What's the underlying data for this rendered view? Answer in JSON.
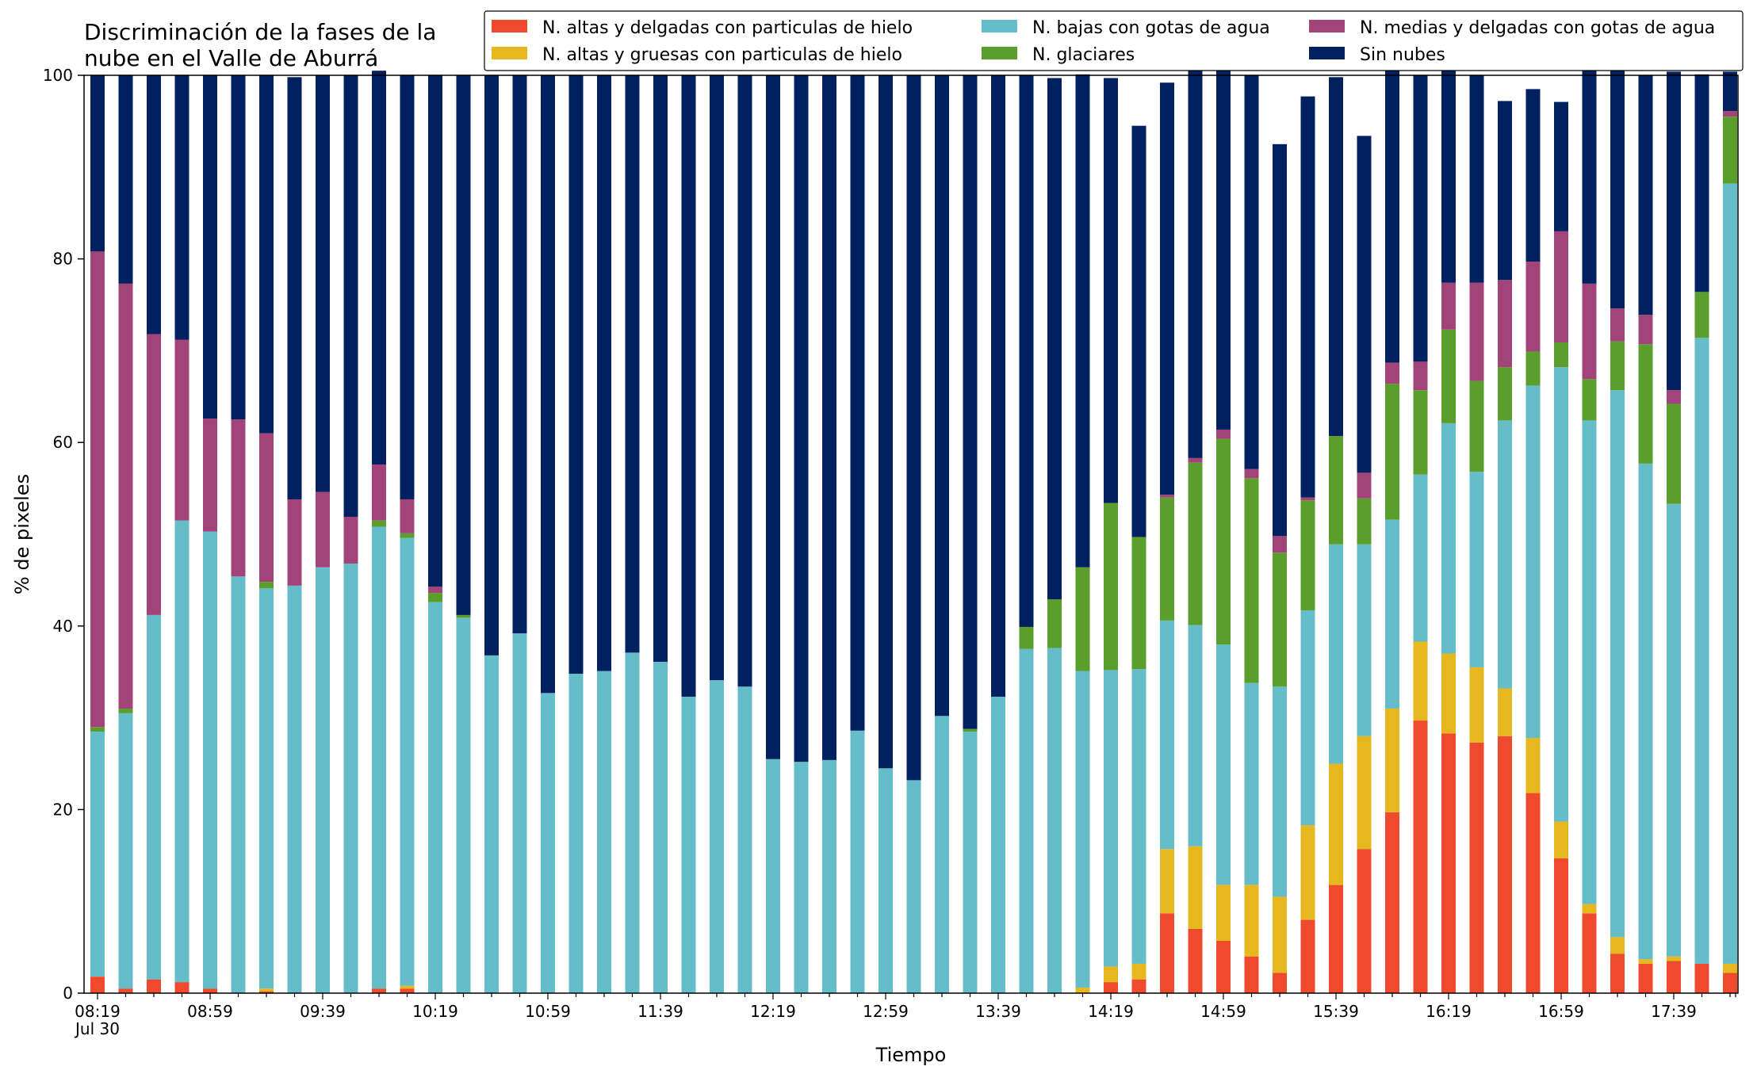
{
  "chart_data": {
    "type": "bar",
    "stacked": true,
    "title_lines": [
      "Discriminación de la fases de la",
      "nube en el Valle de Aburrá"
    ],
    "xlabel": "Tiempo",
    "ylabel": "% de pixeles",
    "ylim": [
      0,
      100
    ],
    "yticks": [
      0,
      20,
      40,
      60,
      80,
      100
    ],
    "grid": false,
    "legend_position": "top-right",
    "x_tick_labels": [
      "08:19",
      "08:59",
      "09:39",
      "10:19",
      "10:59",
      "11:39",
      "12:19",
      "12:59",
      "13:39",
      "14:19",
      "14:59",
      "15:39",
      "16:19",
      "16:59",
      "17:39"
    ],
    "x_sub_label": "Jul 30",
    "series": [
      {
        "name": "N. altas y delgadas con particulas de hielo",
        "color": "#ef4a2e",
        "values": [
          1.8,
          0.5,
          1.5,
          1.2,
          0.5,
          0,
          0.2,
          0,
          0,
          0,
          0.5,
          0.5,
          0,
          0,
          0,
          0,
          0,
          0,
          0,
          0,
          0,
          0,
          0,
          0,
          0,
          0,
          0,
          0,
          0,
          0,
          0,
          0,
          0,
          0,
          0,
          0,
          1.2,
          1.5,
          8.7,
          7,
          5.7,
          4,
          2.2,
          8,
          11.8,
          15.7,
          19.7,
          29.7,
          28.3,
          27.3,
          28,
          21.8,
          14.7,
          8.7,
          4.3,
          3.2,
          3.5,
          3.2,
          2.2
        ]
      },
      {
        "name": "N. altas y gruesas con particulas de hielo",
        "color": "#e6b71e",
        "values": [
          0,
          0,
          0,
          0,
          0,
          0,
          0.3,
          0,
          0,
          0,
          0,
          0.3,
          0,
          0,
          0,
          0,
          0,
          0,
          0,
          0,
          0,
          0,
          0,
          0,
          0,
          0,
          0,
          0,
          0,
          0,
          0,
          0,
          0,
          0,
          0,
          0.6,
          1.7,
          1.7,
          7,
          9,
          6.1,
          7.8,
          8.3,
          10.3,
          13.2,
          12.3,
          11.3,
          8.6,
          8.7,
          8.2,
          5.2,
          6,
          4,
          1,
          1.8,
          0.5,
          0.5,
          0,
          1
        ]
      },
      {
        "name": "N. bajas con gotas de agua",
        "color": "#64bdc9",
        "values": [
          26.7,
          30,
          39.7,
          50.3,
          49.8,
          45.4,
          43.6,
          44.4,
          46.4,
          46.8,
          50.3,
          48.8,
          42.6,
          40.9,
          36.8,
          39.2,
          32.7,
          34.8,
          35.1,
          37.1,
          36.1,
          32.3,
          34.1,
          33.4,
          25.5,
          25.2,
          25.4,
          28.6,
          24.5,
          23.2,
          30.2,
          28.5,
          32.3,
          37.5,
          37.6,
          34.5,
          32.3,
          32.1,
          24.9,
          24.1,
          26.2,
          22,
          22.9,
          23.4,
          23.9,
          20.9,
          20.6,
          18.2,
          25.1,
          21.3,
          29.2,
          38.4,
          49.5,
          52.7,
          59.6,
          54,
          49.3,
          68.2,
          85
        ]
      },
      {
        "name": "N. glaciares",
        "color": "#5a9e2b",
        "values": [
          0.5,
          0.5,
          0,
          0,
          0,
          0,
          0.7,
          0,
          0,
          0,
          0.7,
          0.5,
          1,
          0.3,
          0,
          0,
          0,
          0,
          0,
          0,
          0,
          0,
          0,
          0,
          0,
          0,
          0,
          0,
          0,
          0,
          0,
          0.3,
          0,
          2.4,
          5.3,
          11.3,
          18.2,
          14.4,
          13.4,
          17.7,
          22.4,
          22.3,
          14.6,
          12,
          11.8,
          5,
          14.8,
          9.2,
          10.2,
          9.9,
          5.8,
          3.7,
          2.7,
          4.5,
          5.3,
          13,
          10.9,
          5,
          7.3
        ]
      },
      {
        "name": "N. medias y delgadas con gotas de agua",
        "color": "#a2447a",
        "values": [
          51.8,
          46.3,
          30.6,
          19.7,
          12.3,
          17.1,
          16.2,
          9.4,
          8.2,
          5.1,
          6.1,
          3.7,
          0.7,
          0,
          0,
          0,
          0,
          0,
          0,
          0,
          0,
          0,
          0,
          0,
          0,
          0,
          0,
          0,
          0,
          0,
          0,
          0,
          0,
          0,
          0,
          0,
          0,
          0,
          0.3,
          0.5,
          1,
          1,
          1.8,
          0.3,
          0,
          2.8,
          2.3,
          3.1,
          5.1,
          10.7,
          9.5,
          9.8,
          12.1,
          10.4,
          3.6,
          3.2,
          1.5,
          0,
          0.6
        ]
      },
      {
        "name": "Sin nubes",
        "color": "#002060",
        "values": [
          19.2,
          22.7,
          28.2,
          28.8,
          37.4,
          37.5,
          39,
          46,
          45.4,
          48.1,
          42.9,
          46.2,
          55.7,
          58.8,
          63.2,
          60.8,
          67.3,
          65.2,
          64.9,
          62.9,
          63.9,
          67.7,
          65.9,
          66.6,
          74.5,
          74.8,
          74.6,
          71.4,
          75.5,
          76.8,
          69.8,
          71.2,
          67.7,
          60.1,
          56.8,
          53.7,
          46.3,
          44.8,
          44.9,
          46.4,
          43.5,
          42.9,
          42.7,
          43.7,
          39.1,
          36.7,
          32.3,
          31.2,
          24.1,
          22.6,
          19.5,
          18.8,
          14.1,
          24.7,
          26.7,
          26.1,
          34.7,
          23.7,
          4.3
        ]
      }
    ]
  }
}
